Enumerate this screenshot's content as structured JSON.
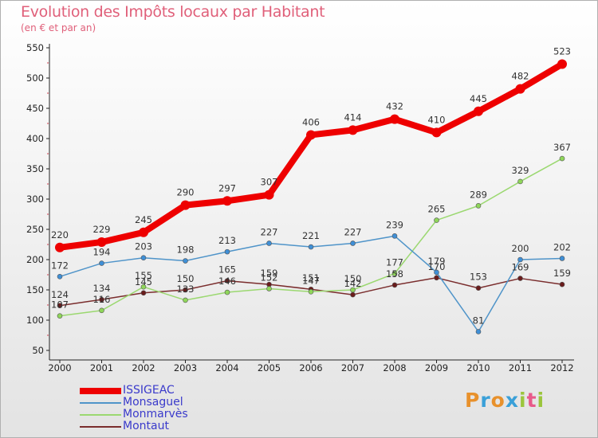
{
  "title": "Evolution des Impôts locaux par Habitant",
  "subtitle": "(en € et par an)",
  "brand": {
    "text": "Proxiti",
    "colors": [
      "#e8912c",
      "#3aa0d8",
      "#e8912c",
      "#3aa0d8",
      "#9bc53d",
      "#e85a8a",
      "#9bc53d"
    ]
  },
  "chart_data": {
    "type": "line",
    "title": "Evolution des Impôts locaux par Habitant",
    "subtitle": "(en € et par an)",
    "xlabel": "",
    "ylabel": "",
    "ylim": [
      50,
      550
    ],
    "yticks": [
      50,
      100,
      150,
      200,
      250,
      300,
      350,
      400,
      450,
      500,
      550
    ],
    "categories": [
      "2000",
      "2001",
      "2002",
      "2003",
      "2004",
      "2005",
      "2006",
      "2007",
      "2008",
      "2009",
      "2010",
      "2011",
      "2012"
    ],
    "grid": false,
    "legend_position": "bottom-left",
    "series": [
      {
        "name": "ISSIGEAC",
        "color": "#ee0000",
        "values": [
          220,
          229,
          245,
          290,
          297,
          307,
          406,
          414,
          432,
          410,
          445,
          482,
          523
        ]
      },
      {
        "name": "Monsaguel",
        "color": "#4f94c9",
        "values": [
          172,
          194,
          203,
          198,
          213,
          227,
          221,
          227,
          239,
          179,
          81,
          200,
          202
        ]
      },
      {
        "name": "Monmarvès",
        "color": "#9bd870",
        "values": [
          107,
          116,
          155,
          133,
          146,
          152,
          147,
          150,
          177,
          265,
          289,
          329,
          367
        ]
      },
      {
        "name": "Montaut",
        "color": "#7a2d2d",
        "values": [
          124,
          134,
          145,
          150,
          165,
          159,
          151,
          142,
          158,
          170,
          153,
          169,
          159
        ]
      }
    ]
  }
}
